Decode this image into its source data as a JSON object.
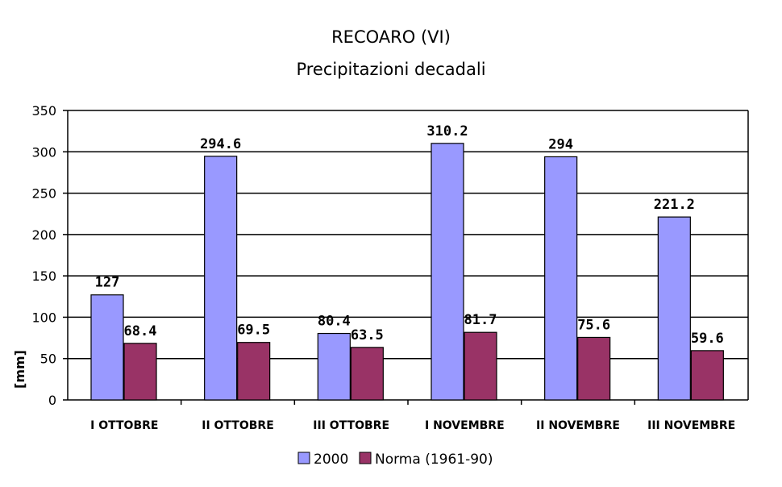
{
  "chart_data": {
    "type": "bar",
    "title": "RECOARO (VI)",
    "subtitle": "Precipitazioni decadali",
    "xlabel": "",
    "ylabel": "[mm]",
    "ylim": [
      0,
      350
    ],
    "yticks": [
      0,
      50,
      100,
      150,
      200,
      250,
      300,
      350
    ],
    "ytick_labels": [
      "0",
      "50",
      "100",
      "150",
      "200",
      "250",
      "300",
      "350"
    ],
    "grid": true,
    "legend": "bottom",
    "categories": [
      "I OTTOBRE",
      "II OTTOBRE",
      "III OTTOBRE",
      "I NOVEMBRE",
      "II NOVEMBRE",
      "III NOVEMBRE"
    ],
    "series": [
      {
        "name": "2000",
        "color": "#9999ff",
        "values": [
          127,
          294.6,
          80.4,
          310.2,
          294,
          221.2
        ],
        "labels": [
          "127",
          "294.6",
          "80.4",
          "310.2",
          "294",
          "221.2"
        ]
      },
      {
        "name": "Norma (1961-90)",
        "color": "#993366",
        "values": [
          68.4,
          69.5,
          63.5,
          81.7,
          75.6,
          59.6
        ],
        "labels": [
          "68.4",
          "69.5",
          "63.5",
          "81.7",
          "75.6",
          "59.6"
        ]
      }
    ]
  }
}
